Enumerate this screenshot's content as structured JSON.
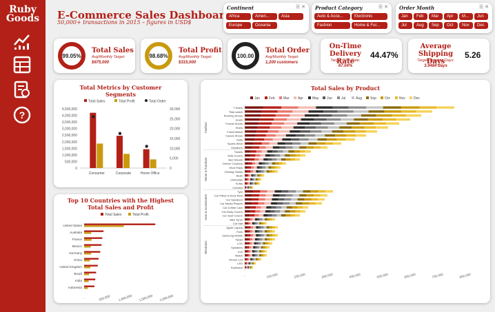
{
  "brand": {
    "line1": "Ruby",
    "line2": "Goods"
  },
  "header": {
    "title": "E-Commerce Sales Dashboard",
    "subtitle": "50,000+ transactions in 2015 – figures in USD$"
  },
  "colors": {
    "accent": "#b22017",
    "gold": "#c99a0e",
    "black": "#222222"
  },
  "nav": [
    {
      "name": "chart-line-icon"
    },
    {
      "name": "table-icon"
    },
    {
      "name": "report-icon"
    },
    {
      "name": "help-icon"
    }
  ],
  "slicers": {
    "continent": {
      "title": "Continent",
      "items": [
        "Africa",
        "Ameri...",
        "Asia",
        "Europe",
        "Oceania"
      ]
    },
    "category": {
      "title": "Product Category",
      "items": [
        "Auto & Acce...",
        "Electronic",
        "Fashion",
        "Home & Fur..."
      ]
    },
    "month": {
      "title": "Order Month",
      "items": [
        "Jan",
        "Feb",
        "Mar",
        "Apr",
        "M...",
        "Jun",
        "Jul",
        "Aug",
        "Sep",
        "Oct",
        "Nov",
        "Dec"
      ]
    }
  },
  "kpis": {
    "sales": {
      "pct": "99.05%",
      "title": "Total Sales",
      "sub": "Avg/Monthly Target:",
      "value": "$675,000",
      "fraction": 0.9905
    },
    "profit": {
      "pct": "98.68%",
      "title": "Total Profit",
      "sub": "Avg/Monthly Target:",
      "value": "$315,000",
      "fraction": 0.9868
    },
    "order": {
      "pct": "100.00",
      "title": "Total Order",
      "sub": "Avg/Monthly Target:",
      "value": "1,200 customers",
      "fraction": 1.0
    },
    "ontime": {
      "title1": "On-Time",
      "title2": "Delivery Rate",
      "value": "44.47%",
      "sub": "Target OTD Rate:",
      "target": "67.04%"
    },
    "shipping": {
      "title1": "Average",
      "title2": "Shipping Days",
      "value": "5.26",
      "sub": "Target Shipping Days:",
      "target": "3.9484 days"
    }
  },
  "chart_data": [
    {
      "type": "bar",
      "title": "Total Metrics by Customer Segments",
      "categories": [
        "Consumer",
        "Corporate",
        "Home Office"
      ],
      "series": [
        {
          "name": "Total Sales",
          "values": [
            4200000,
            2450000,
            1430000
          ],
          "axis": "left"
        },
        {
          "name": "Total Profit",
          "values": [
            1860000,
            1080000,
            660000
          ],
          "axis": "left"
        },
        {
          "name": "Total Order",
          "values": [
            26000,
            17500,
            11000
          ],
          "axis": "right",
          "type": "point"
        }
      ],
      "ylim": [
        0,
        4500000
      ],
      "y2lim": [
        0,
        30000
      ],
      "yticks": [
        "4,500,000",
        "4,000,000",
        "3,500,000",
        "3,000,000",
        "2,500,000",
        "2,000,000",
        "1,500,000",
        "1,000,000",
        "500,000",
        "0"
      ],
      "y2ticks": [
        "30,000",
        "25,000",
        "20,000",
        "15,000",
        "10,000",
        "5,000",
        "0"
      ]
    },
    {
      "type": "bar",
      "orientation": "horizontal",
      "title": "Top 10 Countries with the Highest Total Sales and Profit",
      "categories": [
        "United States",
        "Australia",
        "France",
        "Mexico",
        "Germany",
        "China",
        "United Kingdom",
        "Brazil",
        "India",
        "Indonesia"
      ],
      "series": [
        {
          "name": "Total Sales",
          "values": [
            1720000,
            470000,
            440000,
            420000,
            390000,
            350000,
            330000,
            290000,
            270000,
            250000
          ]
        },
        {
          "name": "Total Profit",
          "values": [
            960000,
            170000,
            180000,
            160000,
            170000,
            140000,
            150000,
            120000,
            110000,
            90000
          ]
        }
      ],
      "xlim": [
        0,
        2000000
      ],
      "xticks": [
        "-",
        "500,000",
        "1,000,000",
        "1,500,000",
        "2,000,000"
      ]
    },
    {
      "type": "bar",
      "orientation": "horizontal",
      "stacked": true,
      "title": "Total Sales by Product",
      "months": [
        "Jan",
        "Feb",
        "Mar",
        "Apr",
        "May",
        "Jun",
        "Jul",
        "Aug",
        "Sep",
        "Oct",
        "Nov",
        "Dec"
      ],
      "month_colors": [
        "#7a1510",
        "#b22017",
        "#e8776d",
        "#f4bdb5",
        "#2b2b2b",
        "#5a5a5a",
        "#8c8c8c",
        "#c4c4c4",
        "#8a6a09",
        "#c99a0e",
        "#e8b928",
        "#f5d35a"
      ],
      "groups": [
        {
          "name": "Fashion",
          "products": [
            {
              "name": "T-Shirts",
              "total": 760000
            },
            {
              "name": "Titak watch",
              "total": 680000
            },
            {
              "name": "Running Shoes",
              "total": 640000
            },
            {
              "name": "Jeans",
              "total": 600000
            },
            {
              "name": "Formal Shoes",
              "total": 560000
            },
            {
              "name": "Shirts",
              "total": 520000
            },
            {
              "name": "Fossil Watch",
              "total": 480000
            },
            {
              "name": "Casula Shoes",
              "total": 440000
            },
            {
              "name": "Suits",
              "total": 400000
            },
            {
              "name": "Sports Wear",
              "total": 350000
            },
            {
              "name": "Sneakers",
              "total": 300000
            }
          ]
        },
        {
          "name": "Home & Furniture",
          "products": [
            {
              "name": "Towels",
              "total": 240000
            },
            {
              "name": "Sofa Covers",
              "total": 220000
            },
            {
              "name": "Bed Sheets",
              "total": 200000
            },
            {
              "name": "Dinner Crockery",
              "total": 150000
            },
            {
              "name": "Shoe Rack",
              "total": 130000
            },
            {
              "name": "Dinning Tables",
              "total": 120000
            },
            {
              "name": "Beds",
              "total": 70000
            },
            {
              "name": "Umbrellas",
              "total": 60000
            },
            {
              "name": "Sofas",
              "total": 55000
            },
            {
              "name": "Curtains",
              "total": 30000
            }
          ]
        },
        {
          "name": "Auto & Accessories",
          "products": [
            {
              "name": "Tyre",
              "total": 320000
            },
            {
              "name": "Car Pillow & Neck Rest",
              "total": 300000
            },
            {
              "name": "Car Speakers",
              "total": 290000
            },
            {
              "name": "Car Media Players",
              "total": 280000
            },
            {
              "name": "Car & Bike Care",
              "total": 230000
            },
            {
              "name": "Car Body Covers",
              "total": 220000
            },
            {
              "name": "Car Seat Covers",
              "total": 200000
            },
            {
              "name": "Bike Tyres",
              "total": 110000
            },
            {
              "name": "Car Mat",
              "total": 80000
            }
          ]
        },
        {
          "name": "Electronic",
          "products": [
            {
              "name": "Apple Laptop",
              "total": 120000
            },
            {
              "name": "Fans",
              "total": 110000
            },
            {
              "name": "Samsung Mobile",
              "total": 120000
            },
            {
              "name": "Tablet",
              "total": 110000
            },
            {
              "name": "LCD",
              "total": 100000
            },
            {
              "name": "Speakers",
              "total": 90000
            },
            {
              "name": "Iron",
              "total": 80000
            },
            {
              "name": "Watch",
              "total": 80000
            },
            {
              "name": "Mouse Led",
              "total": 60000
            },
            {
              "name": "LED",
              "total": 40000
            },
            {
              "name": "Keyboard",
              "total": 30000
            }
          ]
        }
      ],
      "xlim": [
        0,
        800000
      ],
      "xticks": [
        "-",
        "100,000",
        "200,000",
        "300,000",
        "400,000",
        "500,000",
        "600,000",
        "700,000",
        "800,000"
      ]
    }
  ]
}
